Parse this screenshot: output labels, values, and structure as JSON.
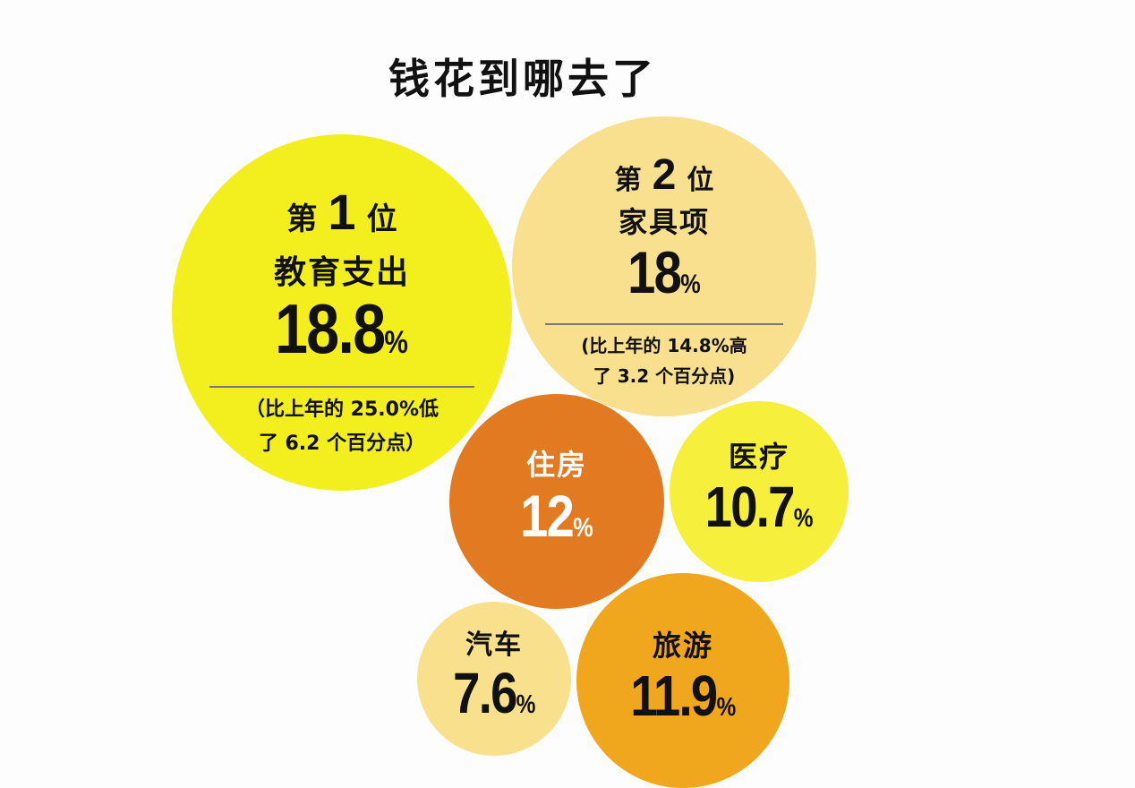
{
  "title": "钱花到哪去了",
  "chart_data": {
    "type": "bubble",
    "title": "钱花到哪去了",
    "series": [
      {
        "category": "教育支出",
        "value": 18.8,
        "display": "18.8",
        "rank_prefix": "第",
        "rank": "1",
        "rank_suffix": "位",
        "note": "（比上年的 25.0%低\n了 6.2 个百分点）",
        "color": "#f3ee1e",
        "text_color": "#111111"
      },
      {
        "category": "家具项",
        "value": 18,
        "display": "18",
        "rank_prefix": "第",
        "rank": "2",
        "rank_suffix": "位",
        "note": "(比上年的 14.8%高\n了 3.2 个百分点)",
        "color": "#f9e08e",
        "text_color": "#111111"
      },
      {
        "category": "住房",
        "value": 12,
        "display": "12",
        "color": "#e27a22",
        "text_color": "#ffffff"
      },
      {
        "category": "医疗",
        "value": 10.7,
        "display": "10.7",
        "color": "#f6ef3c",
        "text_color": "#111111"
      },
      {
        "category": "汽车",
        "value": 7.6,
        "display": "7.6",
        "color": "#f8e08c",
        "text_color": "#111111"
      },
      {
        "category": "旅游",
        "value": 11.9,
        "display": "11.9",
        "color": "#f0a71e",
        "text_color": "#111111"
      }
    ],
    "unit": "%"
  }
}
